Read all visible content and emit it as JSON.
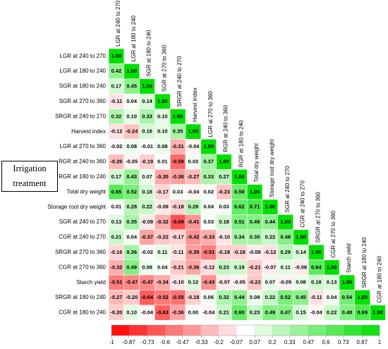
{
  "chart_data": {
    "type": "heatmap",
    "variables": [
      "LGR at 240 to 270",
      "LGR at 180 to 240",
      "SGR at 180 to 240",
      "SGR at 270 to 360",
      "SRGR at 240 to 270",
      "Harvest index",
      "LGR at 270 to 360",
      "RGR at 240 to 360",
      "RGR at 180 to 240",
      "Total dry weight",
      "Storage root dry weight",
      "SGR at 240 to 270",
      "CGR at 240 to 270",
      "SRGR at 270 to 360",
      "CGR at 270 to 360",
      "Starch yield",
      "SRGR at 180 to 240",
      "CGR at 180 to 240"
    ],
    "values": [
      [
        1
      ],
      [
        0.42,
        1
      ],
      [
        0.17,
        0.45,
        1
      ],
      [
        -0.11,
        0.04,
        0.14,
        1
      ],
      [
        0.32,
        0.1,
        0.33,
        0.1,
        1
      ],
      [
        -0.12,
        -0.24,
        0.16,
        0.1,
        0.35,
        1
      ],
      [
        -0.02,
        0.08,
        -0.01,
        0.08,
        -0.31,
        -0.04,
        1
      ],
      [
        -0.26,
        -0.05,
        -0.19,
        0.01,
        -0.59,
        0.03,
        0.37,
        1
      ],
      [
        0.17,
        0.43,
        0.07,
        -0.35,
        -0.38,
        -0.27,
        0.33,
        0.27,
        1
      ],
      [
        0.65,
        0.52,
        0.18,
        -0.17,
        0.03,
        -0.04,
        0.02,
        -0.23,
        0.59,
        1
      ],
      [
        0.01,
        0.28,
        0.22,
        -0.09,
        -0.18,
        0.29,
        0.04,
        0.03,
        0.62,
        0.71,
        1
      ],
      [
        0.13,
        0.35,
        -0.09,
        -0.32,
        -0.69,
        -0.41,
        0.03,
        0.18,
        0.51,
        0.49,
        0.44,
        1
      ],
      [
        0.21,
        0.04,
        -0.37,
        -0.22,
        -0.17,
        -0.42,
        -0.33,
        -0.1,
        0.34,
        0.35,
        0.22,
        0.48,
        1
      ],
      [
        -0.16,
        0.36,
        -0.02,
        0.11,
        -0.11,
        -0.39,
        -0.51,
        -0.18,
        -0.18,
        -0.08,
        -0.12,
        0.29,
        0.14,
        1
      ],
      [
        -0.32,
        0.49,
        0.08,
        0.04,
        -0.21,
        -0.36,
        -0.12,
        0.23,
        0.19,
        -0.21,
        -0.07,
        0.11,
        -0.08,
        0.64,
        1
      ],
      [
        -0.51,
        -0.47,
        -0.47,
        -0.34,
        -0.1,
        0.12,
        -0.43,
        -0.07,
        -0.05,
        -0.22,
        0.07,
        -0.05,
        0.08,
        0.18,
        0.13,
        1
      ],
      [
        -0.27,
        -0.2,
        -0.64,
        -0.52,
        -0.55,
        -0.18,
        0.06,
        0.32,
        0.44,
        0.08,
        0.22,
        0.52,
        0.45,
        -0.11,
        0.04,
        0.54,
        1
      ],
      [
        -0.2,
        0.1,
        -0.04,
        -0.63,
        -0.36,
        0,
        -0.04,
        0.21,
        0.6,
        0.23,
        0.49,
        0.47,
        0.15,
        -0.04,
        0.22,
        0.48,
        0.69,
        1
      ]
    ],
    "value_labels": [
      [
        "1.00"
      ],
      [
        "0.42",
        "1.00"
      ],
      [
        "0.17",
        "0.45",
        "1.00"
      ],
      [
        "-0.11",
        "0.04",
        "0.14",
        "1.00"
      ],
      [
        "0.32",
        "0.10",
        "0.33",
        "0.10",
        "1.00"
      ],
      [
        "-0.12",
        "-0.24",
        "0.16",
        "0.10",
        "0.35",
        "1.00"
      ],
      [
        "-0.02",
        "0.08",
        "-0.01",
        "0.08",
        "-0.31",
        "-0.04",
        "1.00"
      ],
      [
        "-0.26",
        "-0.05",
        "-0.19",
        "0.01",
        "-0.59",
        "0.03",
        "0.37",
        "1.00"
      ],
      [
        "0.17",
        "0.43",
        "0.07",
        "-0.35",
        "-0.38",
        "-0.27",
        "0.33",
        "0.27",
        "1.00"
      ],
      [
        "0.65",
        "0.52",
        "0.18",
        "-0.17",
        "0.03",
        "-0.04",
        "0.02",
        "-0.23",
        "0.59",
        "1.00"
      ],
      [
        "0.01",
        "0.28",
        "0.22",
        "-0.09",
        "-0.18",
        "0.29",
        "0.04",
        "0.03",
        "0.62",
        "0.71",
        "1.00"
      ],
      [
        "0.13",
        "0.35",
        "-0.09",
        "-0.32",
        "-0.69",
        "-0.41",
        "0.03",
        "0.18",
        "0.51",
        "0.49",
        "0.44",
        "1.00"
      ],
      [
        "0.21",
        "0.04",
        "-0.37",
        "-0.22",
        "-0.17",
        "-0.42",
        "-0.33",
        "-0.10",
        "0.34",
        "0.35",
        "0.22",
        "0.48",
        "1.00"
      ],
      [
        "-0.16",
        "0.36",
        "-0.02",
        "0.11",
        "-0.11",
        "-0.39",
        "-0.51",
        "-0.18",
        "-0.18",
        "-0.08",
        "-0.12",
        "0.29",
        "0.14",
        "1.00"
      ],
      [
        "-0.32",
        "0.49",
        "0.08",
        "0.04",
        "-0.21",
        "-0.36",
        "-0.12",
        "0.23",
        "0.19",
        "-0.21",
        "-0.07",
        "0.11",
        "-0.08",
        "0.64",
        "1.00"
      ],
      [
        "-0.51",
        "-0.47",
        "-0.47",
        "-0.34",
        "-0.10",
        "0.12",
        "-0.43",
        "-0.07",
        "-0.05",
        "-0.22",
        "0.07",
        "-0.05",
        "0.08",
        "0.18",
        "0.13",
        "1.00"
      ],
      [
        "-0.27",
        "-0.20",
        "-0.64",
        "-0.52",
        "-0.55",
        "-0.18",
        "0.06",
        "0.32",
        "0.44",
        "0.08",
        "0.22",
        "0.52",
        "0.45",
        "-0.11",
        "0.04",
        "0.54",
        "1.00"
      ],
      [
        "-0.20",
        "0.10",
        "-0.04",
        "-0.63",
        "-0.36",
        "0.00",
        "-0.04",
        "0.21",
        "0.60",
        "0.23",
        "0.49",
        "0.47",
        "0.15",
        "-0.04",
        "0.22",
        "0.48",
        "0.69",
        "1.00"
      ]
    ],
    "annotation": "Irrigation treatment",
    "clim": [
      -1,
      1
    ],
    "cticks": [
      -1,
      -0.87,
      -0.73,
      -0.6,
      -0.47,
      -0.33,
      -0.2,
      -0.07,
      0.07,
      0.2,
      0.33,
      0.47,
      0.6,
      0.73,
      0.87,
      1
    ],
    "colors": {
      "low": "#ff0000",
      "mid": "#ffffff",
      "high": "#00e000"
    }
  }
}
